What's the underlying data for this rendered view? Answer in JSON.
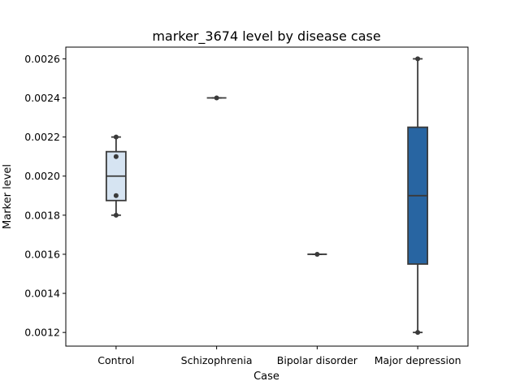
{
  "chart_data": {
    "type": "box",
    "title": "marker_3674 level by disease case",
    "xlabel": "Case",
    "ylabel": "Marker level",
    "categories": [
      "Control",
      "Schizophrenia",
      "Bipolar disorder",
      "Major depression"
    ],
    "ylim": [
      0.00113,
      0.00266
    ],
    "yticks": [
      0.0012,
      0.0014,
      0.0016,
      0.0018,
      0.002,
      0.0022,
      0.0024,
      0.0026
    ],
    "ytick_labels": [
      "0.0012",
      "0.0014",
      "0.0016",
      "0.0018",
      "0.0020",
      "0.0022",
      "0.0024",
      "0.0026"
    ],
    "grid": false,
    "boxes": [
      {
        "category": "Control",
        "whisker_low": 0.0018,
        "q1": 0.001875,
        "median": 0.002,
        "q3": 0.002125,
        "whisker_high": 0.0022,
        "points": [
          0.0018,
          0.0019,
          0.0021,
          0.0022
        ],
        "color": "#d6e4f2"
      },
      {
        "category": "Schizophrenia",
        "whisker_low": 0.0024,
        "q1": 0.0024,
        "median": 0.0024,
        "q3": 0.0024,
        "whisker_high": 0.0024,
        "points": [
          0.0024
        ],
        "color": "#a3c8e2"
      },
      {
        "category": "Bipolar disorder",
        "whisker_low": 0.0016,
        "q1": 0.0016,
        "median": 0.0016,
        "q3": 0.0016,
        "whisker_high": 0.0016,
        "points": [
          0.0016
        ],
        "color": "#5c9ccc"
      },
      {
        "category": "Major depression",
        "whisker_low": 0.0012,
        "q1": 0.00155,
        "median": 0.0019,
        "q3": 0.00225,
        "whisker_high": 0.0026,
        "points": [
          0.0012,
          0.0026
        ],
        "color": "#2865a2"
      }
    ],
    "line_color": "#3a3a3a"
  }
}
